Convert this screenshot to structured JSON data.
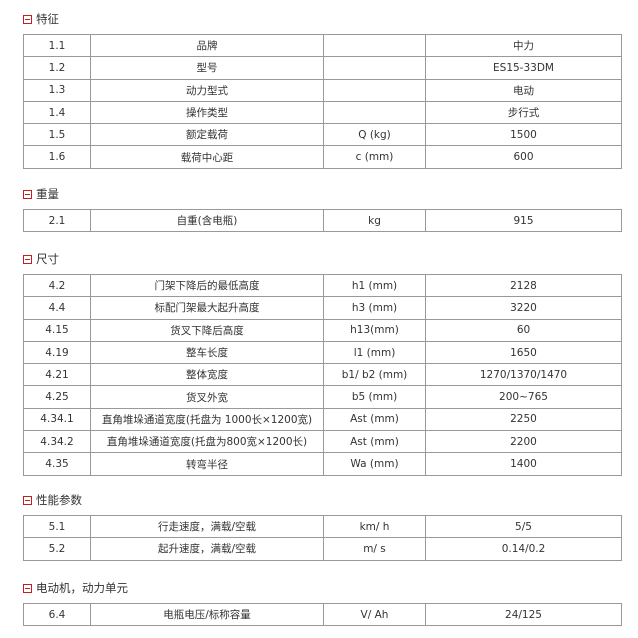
{
  "sections": [
    {
      "title": "特征",
      "rows": [
        [
          "1.1",
          "品牌",
          "",
          "中力"
        ],
        [
          "1.2",
          "型号",
          "",
          "ES15-33DM"
        ],
        [
          "1.3",
          "动力型式",
          "",
          "电动"
        ],
        [
          "1.4",
          "操作类型",
          "",
          "步行式"
        ],
        [
          "1.5",
          "额定载荷",
          "Q (kg)",
          "1500"
        ],
        [
          "1.6",
          "载荷中心距",
          "c (mm)",
          "600"
        ]
      ]
    },
    {
      "title": "重量",
      "rows": [
        [
          "2.1",
          "自重(含电瓶)",
          "kg",
          "915"
        ]
      ]
    },
    {
      "title": "尺寸",
      "rows": [
        [
          "4.2",
          "门架下降后的最低高度",
          "h1 (mm)",
          "2128"
        ],
        [
          "4.4",
          "标配门架最大起升高度",
          "h3 (mm)",
          "3220"
        ],
        [
          "4.15",
          "货叉下降后高度",
          "h13(mm)",
          "60"
        ],
        [
          "4.19",
          "整车长度",
          "l1 (mm)",
          "1650"
        ],
        [
          "4.21",
          "整体宽度",
          "b1/ b2 (mm)",
          "1270/1370/1470"
        ],
        [
          "4.25",
          "货叉外宽",
          "b5 (mm)",
          "200~765"
        ],
        [
          "4.34.1",
          "直角堆垛通道宽度(托盘为 1000长×1200宽)",
          "Ast (mm)",
          "2250"
        ],
        [
          "4.34.2",
          "直角堆垛通道宽度(托盘为800宽×1200长)",
          "Ast (mm)",
          "2200"
        ],
        [
          "4.35",
          "转弯半径",
          "Wa (mm)",
          "1400"
        ]
      ]
    },
    {
      "title": "性能参数",
      "rows": [
        [
          "5.1",
          "行走速度，满载/空载",
          "km/ h",
          "5/5"
        ],
        [
          "5.2",
          "起升速度，满载/空载",
          "m/ s",
          "0.14/0.2"
        ]
      ]
    },
    {
      "title": "电动机，动力单元",
      "rows": [
        [
          "6.4",
          "电瓶电压/标称容量",
          "V/ Ah",
          "24/125"
        ]
      ]
    }
  ]
}
